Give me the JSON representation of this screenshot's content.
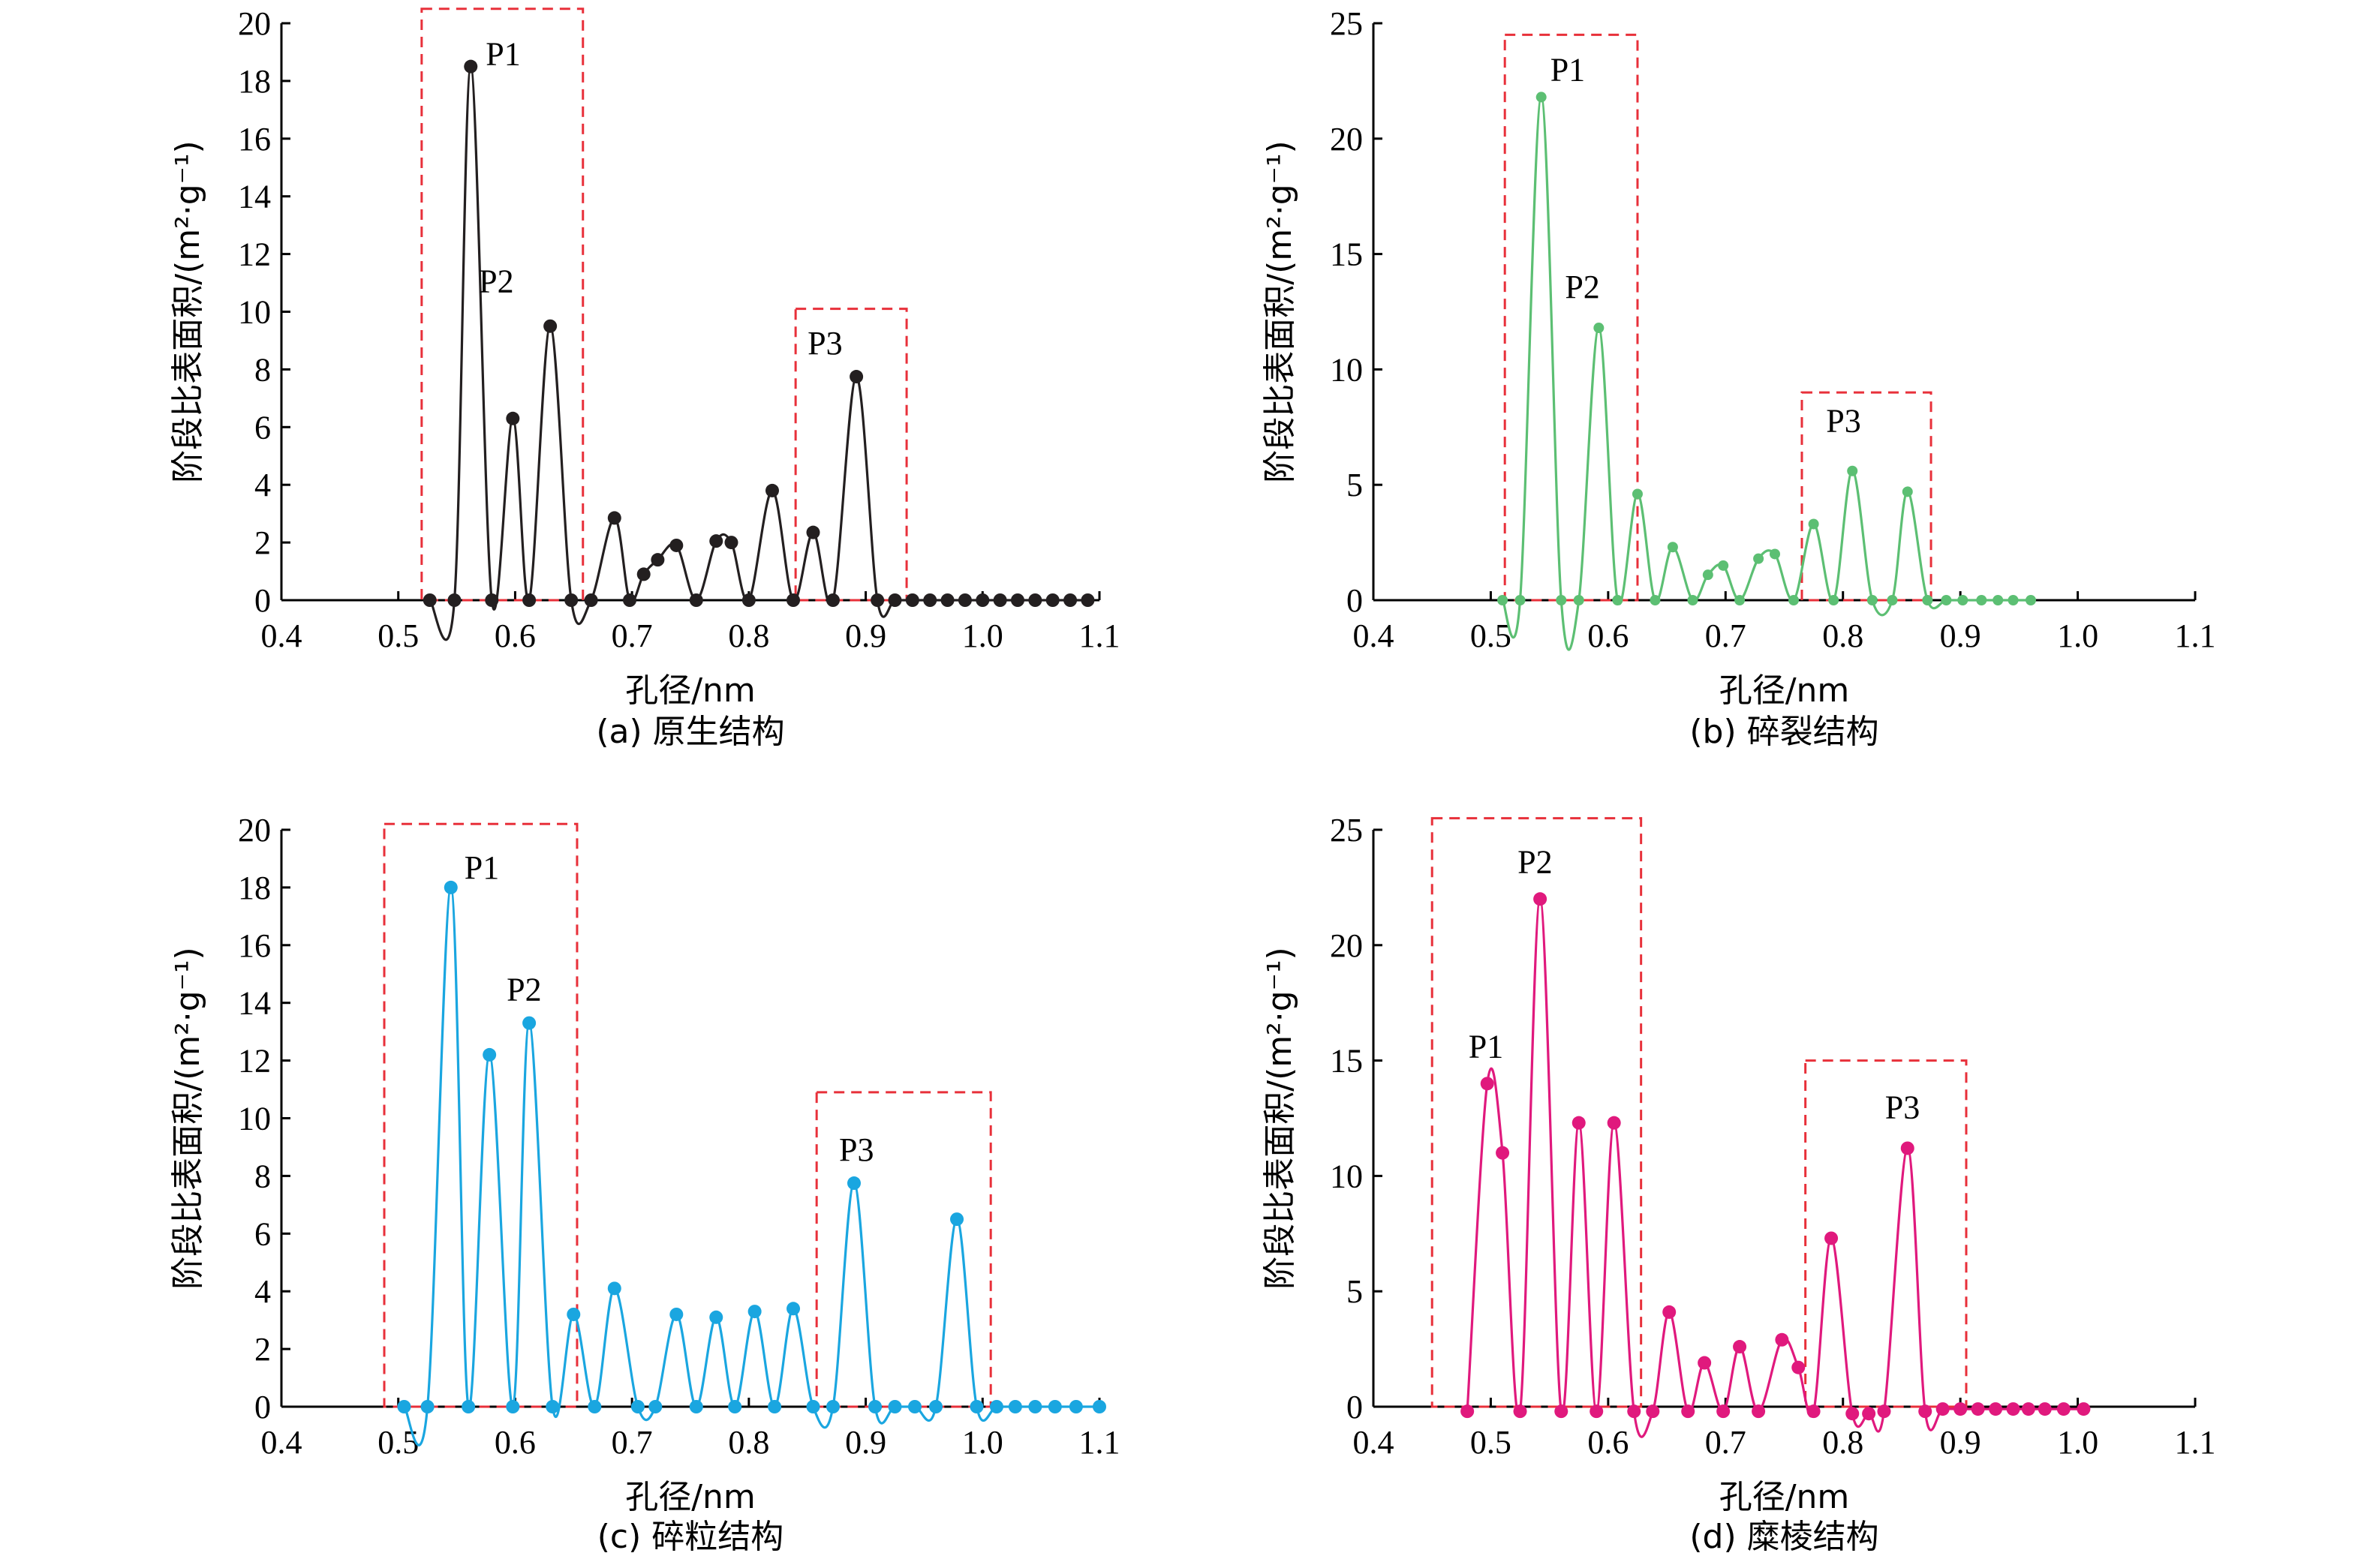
{
  "chart_data": [
    {
      "type": "line",
      "caption": "(a) 原生结构",
      "xlabel": "孔径/nm",
      "ylabel": "阶段比表面积/(m²·g⁻¹)",
      "xlim": [
        0.4,
        1.1
      ],
      "ylim": [
        0,
        20
      ],
      "xticks": [
        "0.4",
        "0.5",
        "0.6",
        "0.7",
        "0.8",
        "0.9",
        "1.0",
        "1.1"
      ],
      "yticks": [
        "0",
        "2",
        "4",
        "6",
        "8",
        "10",
        "12",
        "14",
        "16",
        "18",
        "20"
      ],
      "color": "#231f20",
      "marker_size": "large",
      "series": [
        {
          "x": [
            0.527,
            0.548,
            0.562,
            0.58,
            0.598,
            0.612,
            0.63,
            0.648,
            0.665,
            0.685,
            0.698,
            0.71,
            0.722,
            0.738,
            0.755,
            0.772,
            0.785,
            0.8,
            0.82,
            0.838,
            0.855,
            0.872,
            0.892,
            0.91,
            0.925,
            0.94,
            0.955,
            0.97,
            0.985,
            1.0,
            1.015,
            1.03,
            1.045,
            1.06,
            1.075,
            1.09
          ],
          "y": [
            0,
            0,
            18.5,
            0,
            6.3,
            0,
            9.5,
            0,
            0,
            2.85,
            0,
            0.9,
            1.4,
            1.9,
            0,
            2.05,
            2.0,
            0,
            3.8,
            0,
            2.35,
            0,
            7.75,
            0,
            0,
            0,
            0,
            0,
            0,
            0,
            0,
            0,
            0,
            0,
            0,
            0
          ]
        }
      ],
      "annotations": [
        {
          "text": "P1",
          "x": 0.562,
          "y": 18.5,
          "box": [
            0.52,
            0.658,
            20.5
          ]
        },
        {
          "text": "P2",
          "x": 0.63,
          "y": 9.5
        },
        {
          "text": "P3",
          "x": 0.892,
          "y": 7.75,
          "box": [
            0.84,
            0.935,
            10.1
          ]
        }
      ]
    },
    {
      "type": "line",
      "caption": "(b) 碎裂结构",
      "xlabel": "孔径/nm",
      "ylabel": "阶段比表面积/(m²·g⁻¹)",
      "xlim": [
        0.4,
        1.1
      ],
      "ylim": [
        0,
        25
      ],
      "xticks": [
        "0.4",
        "0.5",
        "0.6",
        "0.7",
        "0.8",
        "0.9",
        "1.0",
        "1.1"
      ],
      "yticks": [
        "0",
        "5",
        "10",
        "15",
        "20",
        "25"
      ],
      "color": "#5cbf73",
      "marker_size": "small",
      "series": [
        {
          "x": [
            0.51,
            0.525,
            0.543,
            0.56,
            0.575,
            0.592,
            0.608,
            0.625,
            0.64,
            0.655,
            0.672,
            0.685,
            0.698,
            0.712,
            0.728,
            0.742,
            0.758,
            0.775,
            0.792,
            0.808,
            0.825,
            0.842,
            0.855,
            0.872,
            0.888,
            0.902,
            0.918,
            0.932,
            0.945,
            0.96
          ],
          "y": [
            0,
            0,
            21.8,
            0,
            0,
            11.8,
            0,
            4.6,
            0,
            2.3,
            0,
            1.1,
            1.5,
            0,
            1.8,
            2.0,
            0,
            3.3,
            0,
            5.6,
            0,
            0,
            4.7,
            0,
            0,
            0,
            0,
            0,
            0,
            0
          ]
        }
      ],
      "annotations": [
        {
          "text": "P1",
          "x": 0.543,
          "y": 21.8,
          "box": [
            0.512,
            0.625,
            24.5
          ]
        },
        {
          "text": "P2",
          "x": 0.592,
          "y": 11.8
        },
        {
          "text": "P3",
          "x": 0.808,
          "y": 5.6,
          "box": [
            0.765,
            0.875,
            9.0
          ]
        }
      ]
    },
    {
      "type": "line",
      "caption": "(c) 碎粒结构",
      "xlabel": "孔径/nm",
      "ylabel": "阶段比表面积/(m²·g⁻¹)",
      "xlim": [
        0.4,
        1.1
      ],
      "ylim": [
        0,
        20
      ],
      "xticks": [
        "0.4",
        "0.5",
        "0.6",
        "0.7",
        "0.8",
        "0.9",
        "1.0",
        "1.1"
      ],
      "yticks": [
        "0",
        "2",
        "4",
        "6",
        "8",
        "10",
        "12",
        "14",
        "16",
        "18",
        "20"
      ],
      "color": "#1aa6e0",
      "marker_size": "large",
      "series": [
        {
          "x": [
            0.505,
            0.525,
            0.545,
            0.56,
            0.578,
            0.598,
            0.612,
            0.632,
            0.65,
            0.668,
            0.685,
            0.705,
            0.72,
            0.738,
            0.755,
            0.772,
            0.788,
            0.805,
            0.822,
            0.838,
            0.855,
            0.872,
            0.89,
            0.908,
            0.925,
            0.942,
            0.96,
            0.978,
            0.995,
            1.012,
            1.028,
            1.045,
            1.062,
            1.08,
            1.1
          ],
          "y": [
            0,
            0,
            18.0,
            0,
            12.2,
            0,
            13.3,
            0,
            3.2,
            0,
            4.1,
            0,
            0,
            3.2,
            0,
            3.1,
            0,
            3.3,
            0,
            3.4,
            0,
            0,
            7.75,
            0,
            0,
            0,
            0,
            6.5,
            0,
            0,
            0,
            0,
            0,
            0,
            0
          ]
        }
      ],
      "annotations": [
        {
          "text": "P1",
          "x": 0.545,
          "y": 18.0,
          "box": [
            0.488,
            0.653,
            20.2
          ]
        },
        {
          "text": "P2",
          "x": 0.612,
          "y": 13.3
        },
        {
          "text": "P3",
          "x": 0.89,
          "y": 7.75,
          "box": [
            0.858,
            1.007,
            10.9
          ]
        }
      ]
    },
    {
      "type": "line",
      "caption": "(d) 糜棱结构",
      "xlabel": "孔径/nm",
      "ylabel": "阶段比表面积/(m²·g⁻¹)",
      "xlim": [
        0.4,
        1.1
      ],
      "ylim": [
        0,
        25
      ],
      "xticks": [
        "0.4",
        "0.5",
        "0.6",
        "0.7",
        "0.8",
        "0.9",
        "1.0",
        "1.1"
      ],
      "yticks": [
        "0",
        "5",
        "10",
        "15",
        "20",
        "25"
      ],
      "color": "#e0197d",
      "marker_size": "large",
      "series": [
        {
          "x": [
            0.48,
            0.497,
            0.51,
            0.525,
            0.542,
            0.56,
            0.575,
            0.59,
            0.605,
            0.622,
            0.638,
            0.652,
            0.668,
            0.682,
            0.698,
            0.712,
            0.728,
            0.748,
            0.762,
            0.775,
            0.79,
            0.808,
            0.822,
            0.835,
            0.855,
            0.87,
            0.885,
            0.9,
            0.915,
            0.93,
            0.945,
            0.958,
            0.972,
            0.988,
            1.005
          ],
          "y": [
            -0.2,
            14.0,
            11.0,
            -0.2,
            22.0,
            -0.2,
            12.3,
            -0.2,
            12.3,
            -0.2,
            -0.2,
            4.1,
            -0.2,
            1.9,
            -0.2,
            2.6,
            -0.2,
            2.9,
            1.7,
            -0.2,
            7.3,
            -0.3,
            -0.3,
            -0.2,
            11.2,
            -0.2,
            -0.1,
            -0.1,
            -0.1,
            -0.1,
            -0.1,
            -0.1,
            -0.1,
            -0.1,
            -0.1
          ]
        }
      ],
      "annotations": [
        {
          "text": "P1",
          "x": 0.497,
          "y": 14.0
        },
        {
          "text": "P2",
          "x": 0.542,
          "y": 22.0,
          "box": [
            0.45,
            0.628,
            25.5
          ]
        },
        {
          "text": "P3",
          "x": 0.855,
          "y": 11.2,
          "box": [
            0.768,
            0.905,
            15.0
          ]
        }
      ]
    }
  ]
}
